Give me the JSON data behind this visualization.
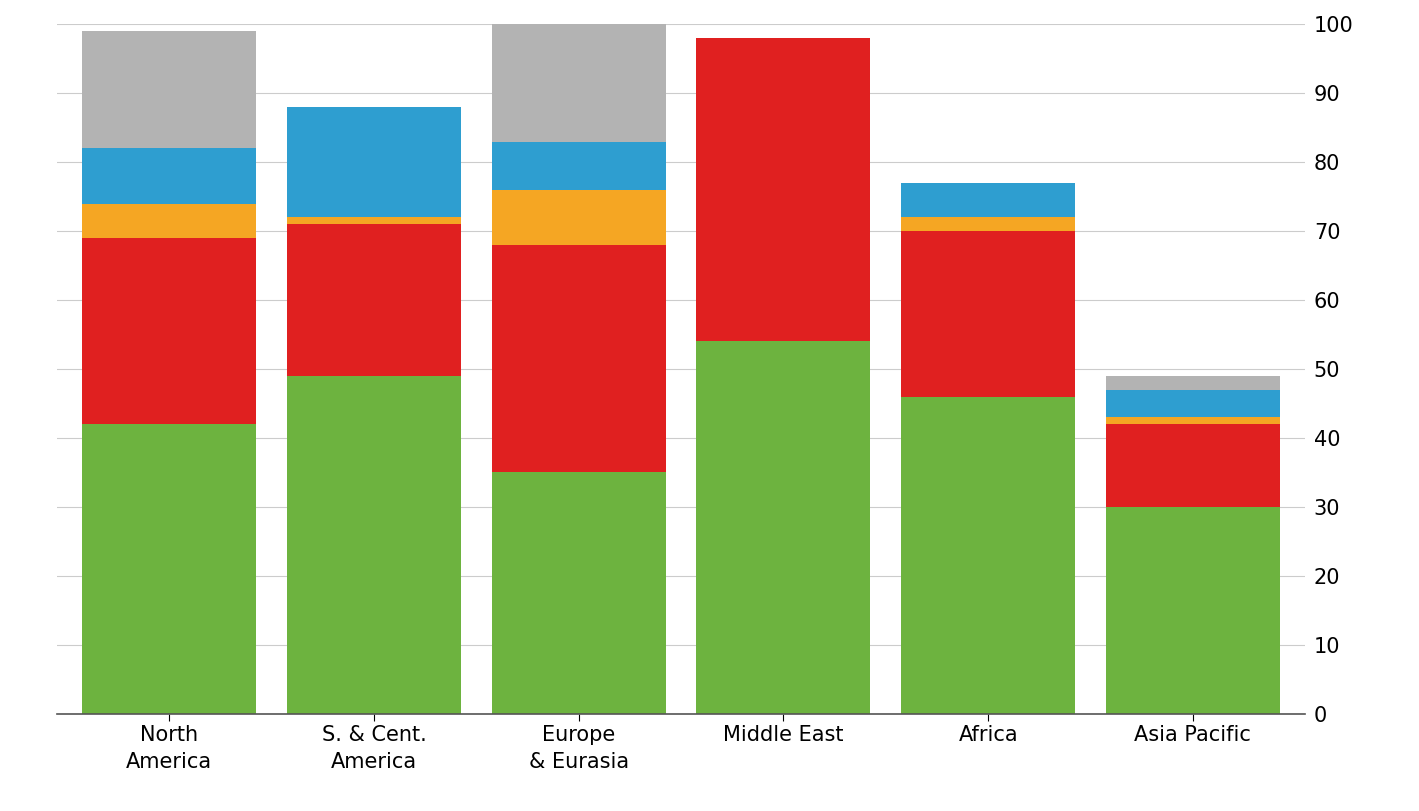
{
  "categories": [
    "North\nAmerica",
    "S. & Cent.\nAmerica",
    "Europe\n& Eurasia",
    "Middle East",
    "Africa",
    "Asia Pacific"
  ],
  "segments": {
    "green": [
      42,
      49,
      35,
      54,
      46,
      30
    ],
    "red": [
      27,
      22,
      33,
      44,
      24,
      12
    ],
    "orange": [
      5,
      1,
      8,
      0,
      2,
      1
    ],
    "blue": [
      8,
      16,
      7,
      0,
      5,
      4
    ],
    "gray": [
      17,
      0,
      17,
      0,
      0,
      2
    ]
  },
  "colors": {
    "green": "#6db33f",
    "red": "#e02020",
    "orange": "#f5a623",
    "blue": "#2e9ed0",
    "gray": "#b3b3b3"
  },
  "ylim": [
    0,
    100
  ],
  "yticks": [
    0,
    10,
    20,
    30,
    40,
    50,
    60,
    70,
    80,
    90,
    100
  ],
  "bar_width": 0.85,
  "background_color": "#ffffff",
  "tick_fontsize": 15,
  "label_fontsize": 15
}
